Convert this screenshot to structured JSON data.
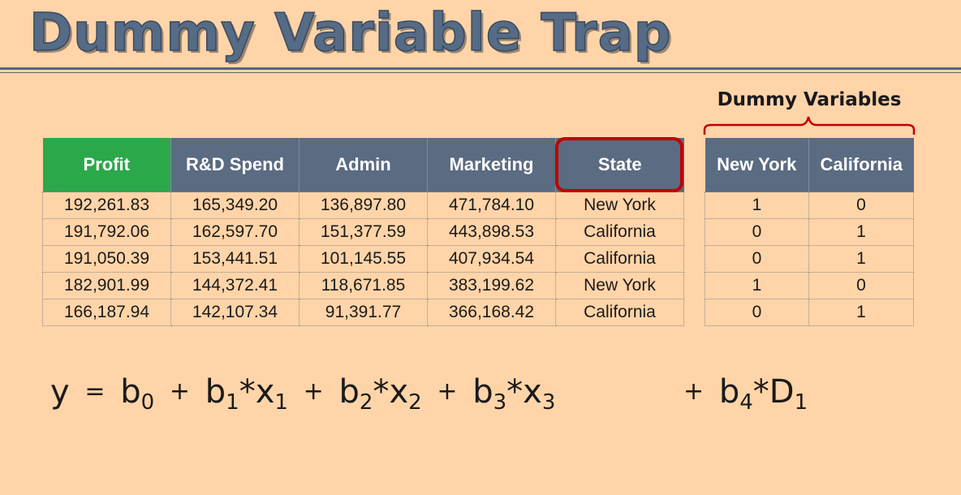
{
  "slide": {
    "title": "Dummy Variable Trap",
    "dummy_label": "Dummy Variables"
  },
  "colors": {
    "background": "#FFD4A8",
    "header": "#5A6B82",
    "profit_header": "#2BA84A",
    "highlight": "#C00000"
  },
  "main_table": {
    "headers": [
      "Profit",
      "R&D Spend",
      "Admin",
      "Marketing",
      "State"
    ],
    "rows": [
      [
        "192,261.83",
        "165,349.20",
        "136,897.80",
        "471,784.10",
        "New York"
      ],
      [
        "191,792.06",
        "162,597.70",
        "151,377.59",
        "443,898.53",
        "California"
      ],
      [
        "191,050.39",
        "153,441.51",
        "101,145.55",
        "407,934.54",
        "California"
      ],
      [
        "182,901.99",
        "144,372.41",
        "118,671.85",
        "383,199.62",
        "New York"
      ],
      [
        "166,187.94",
        "142,107.34",
        "91,391.77",
        "366,168.42",
        "California"
      ]
    ]
  },
  "dummy_table": {
    "headers": [
      "New York",
      "California"
    ],
    "rows": [
      [
        "1",
        "0"
      ],
      [
        "0",
        "1"
      ],
      [
        "0",
        "1"
      ],
      [
        "1",
        "0"
      ],
      [
        "0",
        "1"
      ]
    ]
  },
  "formula": {
    "y": "y",
    "eq": "=",
    "plus": "+",
    "star": "*",
    "b0": "b",
    "b0_sub": "0",
    "b1": "b",
    "b1_sub": "1",
    "x1": "x",
    "x1_sub": "1",
    "b2": "b",
    "b2_sub": "2",
    "x2": "x",
    "x2_sub": "2",
    "b3": "b",
    "b3_sub": "3",
    "x3": "x",
    "x3_sub": "3",
    "b4": "b",
    "b4_sub": "4",
    "d1": "D",
    "d1_sub": "1"
  }
}
